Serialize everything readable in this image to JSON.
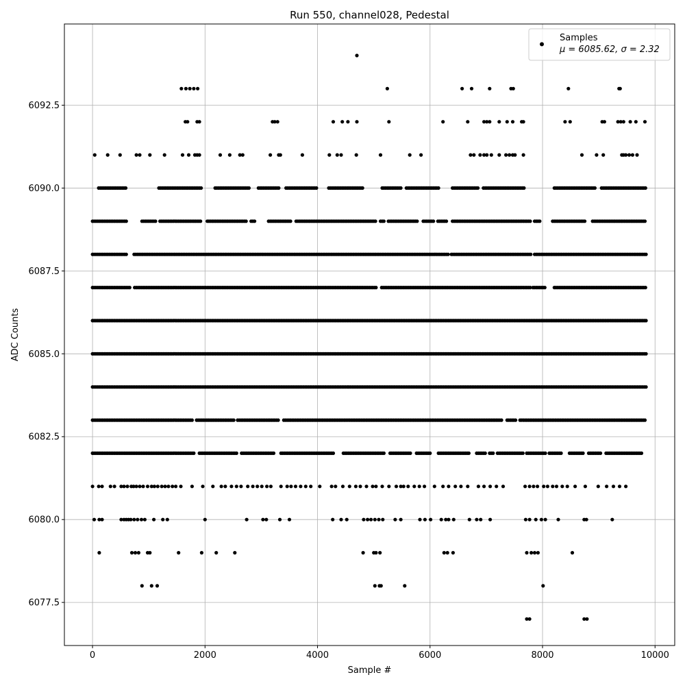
{
  "chart_data": {
    "type": "scatter",
    "title": "Run 550, channel028, Pedestal",
    "xlabel": "Sample #",
    "ylabel": "ADC Counts",
    "xlim": [
      -500,
      10350
    ],
    "ylim": [
      6076.2,
      6094.95
    ],
    "x_ticks": [
      0,
      2000,
      4000,
      6000,
      8000,
      10000
    ],
    "x_tick_labels": [
      "0",
      "2000",
      "4000",
      "6000",
      "8000",
      "10000"
    ],
    "y_ticks": [
      6077.5,
      6080.0,
      6082.5,
      6085.0,
      6087.5,
      6090.0,
      6092.5
    ],
    "y_tick_labels": [
      "6077.5",
      "6080.0",
      "6082.5",
      "6085.0",
      "6087.5",
      "6090.0",
      "6092.5"
    ],
    "grid": true,
    "legend_position": "top-right",
    "marker_color": "#000000",
    "series": [
      {
        "name": "Samples",
        "stats_label": "μ = 6085.62, σ = 2.32",
        "x_range": [
          0,
          9840
        ],
        "levels": [
          {
            "y": 6094,
            "x": [
              4700
            ]
          },
          {
            "y": 6093,
            "x": [
              1580,
              1660,
              1730,
              1800,
              1870,
              5240,
              6570,
              6740,
              7060,
              7440,
              7480,
              8460,
              9360,
              9380
            ]
          },
          {
            "y": 6092,
            "x": [
              1650,
              1690,
              1860,
              1900,
              3200,
              3240,
              3290,
              4280,
              4440,
              4540,
              4700,
              5270,
              6230,
              6670,
              6960,
              7010,
              7060,
              7230,
              7370,
              7470,
              7630,
              7660,
              8400,
              8490,
              9060,
              9100,
              9340,
              9390,
              9440,
              9560,
              9660,
              9820
            ]
          },
          {
            "y": 6091,
            "x": [
              40,
              270,
              490,
              780,
              840,
              1020,
              1280,
              1600,
              1710,
              1820,
              1860,
              1900,
              2270,
              2440,
              2620,
              2670,
              3160,
              3310,
              3340,
              3730,
              4210,
              4350,
              4420,
              4690,
              5120,
              5640,
              5840,
              6720,
              6780,
              6890,
              6960,
              7010,
              7090,
              7230,
              7350,
              7410,
              7470,
              7510,
              7660,
              8700,
              8960,
              9080,
              9410,
              9440,
              9480,
              9540,
              9600,
              9680
            ]
          },
          {
            "y": 6090,
            "x_span": [
              [
                110,
                600
              ],
              [
                1180,
                1930
              ],
              [
                2180,
                2800
              ],
              [
                2950,
                3330
              ],
              [
                3440,
                4000
              ],
              [
                4200,
                4800
              ],
              [
                5150,
                5480
              ],
              [
                5580,
                6160
              ],
              [
                6400,
                6860
              ],
              [
                6950,
                7680
              ],
              [
                8210,
                8950
              ],
              [
                9050,
                9840
              ]
            ]
          },
          {
            "y": 6089,
            "x_span": [
              [
                0,
                600
              ],
              [
                880,
                1140
              ],
              [
                1200,
                1940
              ],
              [
                2040,
                2750
              ],
              [
                2820,
                2900
              ],
              [
                3130,
                3540
              ],
              [
                3620,
                5030
              ],
              [
                5120,
                5180
              ],
              [
                5260,
                5780
              ],
              [
                5880,
                6060
              ],
              [
                6140,
                6310
              ],
              [
                6400,
                7780
              ],
              [
                7860,
                7970
              ],
              [
                8180,
                8760
              ],
              [
                8890,
                9840
              ]
            ]
          },
          {
            "y": 6088,
            "x_span": [
              [
                0,
                620
              ],
              [
                740,
                6330
              ],
              [
                6380,
                7790
              ],
              [
                7860,
                9850
              ]
            ]
          },
          {
            "y": 6087,
            "x_span": [
              [
                0,
                660
              ],
              [
                750,
                5060
              ],
              [
                5140,
                7780
              ],
              [
                7830,
                8060
              ],
              [
                8210,
                9850
              ]
            ]
          },
          {
            "y": 6086,
            "x_span": [
              [
                0,
                9850
              ]
            ]
          },
          {
            "y": 6085,
            "x_span": [
              [
                0,
                9850
              ]
            ]
          },
          {
            "y": 6084,
            "x_span": [
              [
                0,
                9850
              ]
            ]
          },
          {
            "y": 6083,
            "x_span": [
              [
                0,
                1780
              ],
              [
                1850,
                2520
              ],
              [
                2580,
                3320
              ],
              [
                3400,
                7280
              ],
              [
                7370,
                7520
              ],
              [
                7600,
                9830
              ]
            ]
          },
          {
            "y": 6082,
            "x_span": [
              [
                0,
                1800
              ],
              [
                1900,
                2560
              ],
              [
                2650,
                3240
              ],
              [
                3350,
                4300
              ],
              [
                4460,
                5190
              ],
              [
                5290,
                5660
              ],
              [
                5760,
                6020
              ],
              [
                6150,
                6700
              ],
              [
                6830,
                6980
              ],
              [
                7060,
                7130
              ],
              [
                7200,
                7660
              ],
              [
                7720,
                8050
              ],
              [
                8120,
                8340
              ],
              [
                8480,
                8740
              ],
              [
                8820,
                9040
              ],
              [
                9130,
                9780
              ]
            ]
          },
          {
            "y": 6081,
            "x": [
              0,
              110,
              170,
              320,
              390,
              510,
              560,
              620,
              690,
              730,
              780,
              840,
              900,
              980,
              1050,
              1100,
              1160,
              1230,
              1290,
              1350,
              1420,
              1480,
              1570,
              1770,
              1960,
              2140,
              2290,
              2360,
              2470,
              2560,
              2640,
              2760,
              2850,
              2930,
              3010,
              3100,
              3170,
              3350,
              3460,
              3530,
              3610,
              3700,
              3790,
              3880,
              4040,
              4250,
              4320,
              4450,
              4570,
              4680,
              4760,
              4870,
              4980,
              5040,
              5150,
              5270,
              5400,
              5480,
              5530,
              5610,
              5720,
              5810,
              5900,
              6080,
              6230,
              6330,
              6450,
              6550,
              6670,
              6860,
              6960,
              7070,
              7180,
              7300,
              7690,
              7770,
              7840,
              7910,
              8020,
              8090,
              8180,
              8250,
              8350,
              8440,
              8580,
              8760,
              8990,
              9140,
              9260,
              9370,
              9480
            ]
          },
          {
            "y": 6080,
            "x": [
              30,
              120,
              170,
              510,
              560,
              600,
              640,
              680,
              740,
              800,
              870,
              930,
              1090,
              1250,
              1330,
              2000,
              2740,
              3030,
              3090,
              3330,
              3500,
              4270,
              4420,
              4520,
              4820,
              4890,
              4950,
              5020,
              5090,
              5160,
              5380,
              5480,
              5820,
              5910,
              6010,
              6200,
              6280,
              6330,
              6420,
              6700,
              6830,
              6900,
              7070,
              7700,
              7770,
              7880,
              7980,
              8050,
              8280,
              8740,
              8780,
              9240
            ]
          },
          {
            "y": 6079,
            "x": [
              120,
              700,
              760,
              820,
              980,
              1020,
              1530,
              1940,
              2200,
              2530,
              4810,
              5000,
              5040,
              5110,
              6250,
              6310,
              6410,
              7720,
              7800,
              7860,
              7920,
              8530
            ]
          },
          {
            "y": 6078,
            "x": [
              880,
              1050,
              1150,
              5020,
              5100,
              5130,
              5550,
              8010
            ]
          },
          {
            "y": 6077,
            "x": [
              7720,
              7770,
              8740,
              8790
            ]
          }
        ]
      }
    ]
  }
}
